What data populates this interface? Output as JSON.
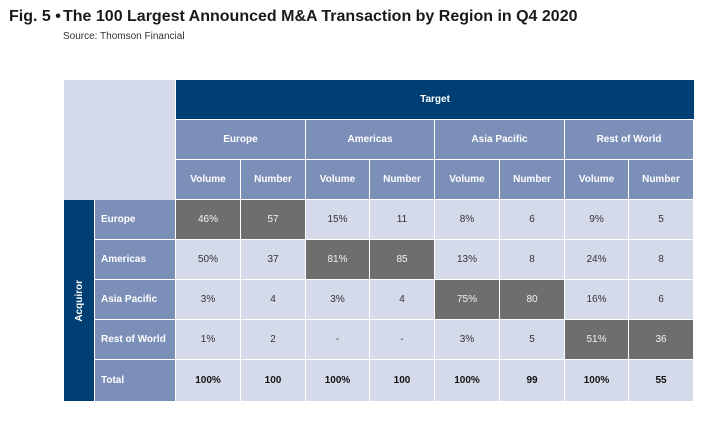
{
  "figure": {
    "number": "Fig. 5 •",
    "title": "The 100 Largest Announced M&A Transaction by Region in Q4 2020",
    "source": "Source: Thomson Financial"
  },
  "table": {
    "column_group_header": "Target",
    "row_group_header": "Acquiror",
    "target_regions": [
      "Europe",
      "Americas",
      "Asia Pacific",
      "Rest of World"
    ],
    "sub_columns": [
      "Volume",
      "Number",
      "Volume",
      "Number",
      "Volume",
      "Number",
      "Volume",
      "Number"
    ],
    "rows": [
      {
        "label": "Europe",
        "values": [
          "46%",
          "57",
          "15%",
          "11",
          "8%",
          "6",
          "9%",
          "5"
        ],
        "highlight": [
          0,
          1
        ],
        "total": false
      },
      {
        "label": "Americas",
        "values": [
          "50%",
          "37",
          "81%",
          "85",
          "13%",
          "8",
          "24%",
          "8"
        ],
        "highlight": [
          2,
          3
        ],
        "total": false
      },
      {
        "label": "Asia Pacific",
        "values": [
          "3%",
          "4",
          "3%",
          "4",
          "75%",
          "80",
          "16%",
          "6"
        ],
        "highlight": [
          4,
          5
        ],
        "total": false
      },
      {
        "label": "Rest of World",
        "values": [
          "1%",
          "2",
          "-",
          "-",
          "3%",
          "5",
          "51%",
          "36"
        ],
        "highlight": [
          6,
          7
        ],
        "total": false
      },
      {
        "label": "Total",
        "values": [
          "100%",
          "100",
          "100%",
          "100",
          "100%",
          "99",
          "100%",
          "55"
        ],
        "highlight": [],
        "total": true
      }
    ]
  },
  "colors": {
    "navy": "#003f74",
    "header_blue": "#7b8fb8",
    "cell_light": "#d4daea",
    "highlight_gray": "#6e6e6e"
  }
}
